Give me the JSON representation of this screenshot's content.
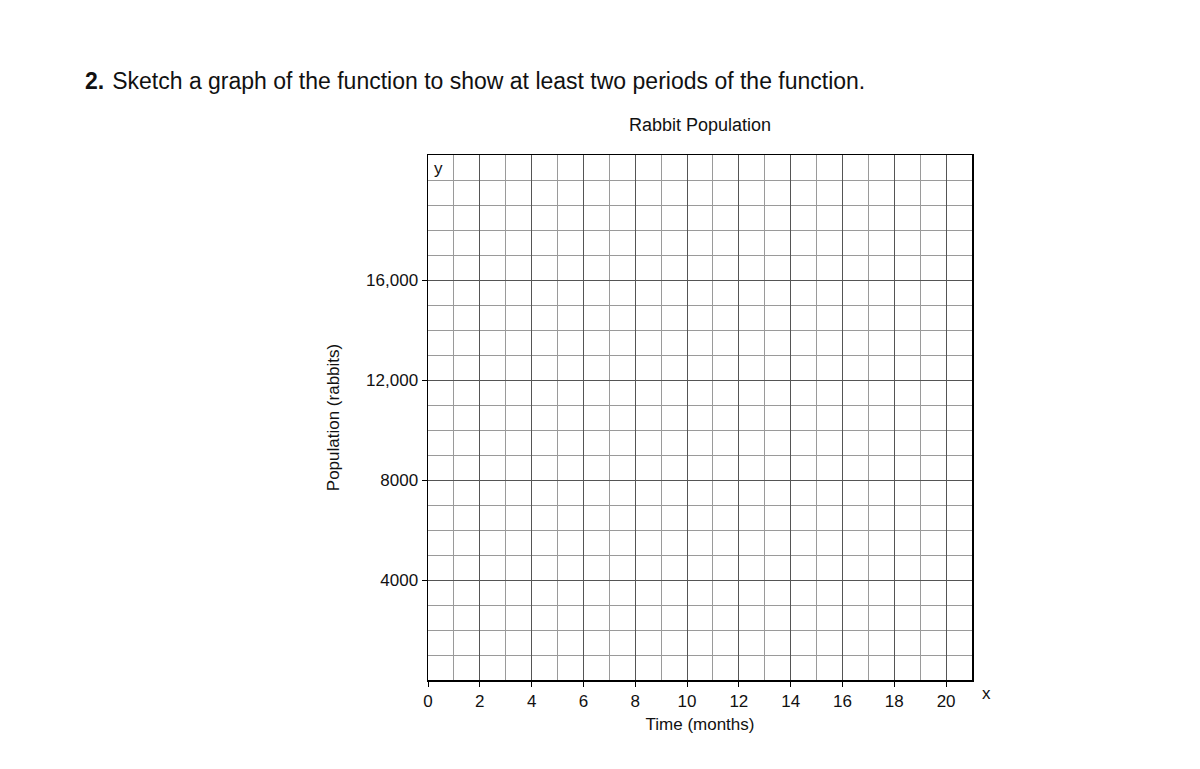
{
  "question": {
    "number": "2.",
    "text": "Sketch a graph of the function to show at least two periods of the function."
  },
  "chart_data": {
    "type": "line",
    "title": "Rabbit Population",
    "x_label": "Time (months)",
    "y_label": "Population (rabbits)",
    "series": [],
    "xlim": [
      0,
      21
    ],
    "xticks": [
      0,
      2,
      4,
      6,
      8,
      10,
      12,
      14,
      16,
      18,
      20
    ],
    "ylim": [
      0,
      21000
    ],
    "yticks": [
      {
        "value": 4000,
        "label": "4000"
      },
      {
        "value": 8000,
        "label": "8000"
      },
      {
        "value": 12000,
        "label": "12,000"
      },
      {
        "value": 16000,
        "label": "16,000"
      }
    ],
    "annotations": [
      "y",
      "x"
    ],
    "grid": true
  }
}
